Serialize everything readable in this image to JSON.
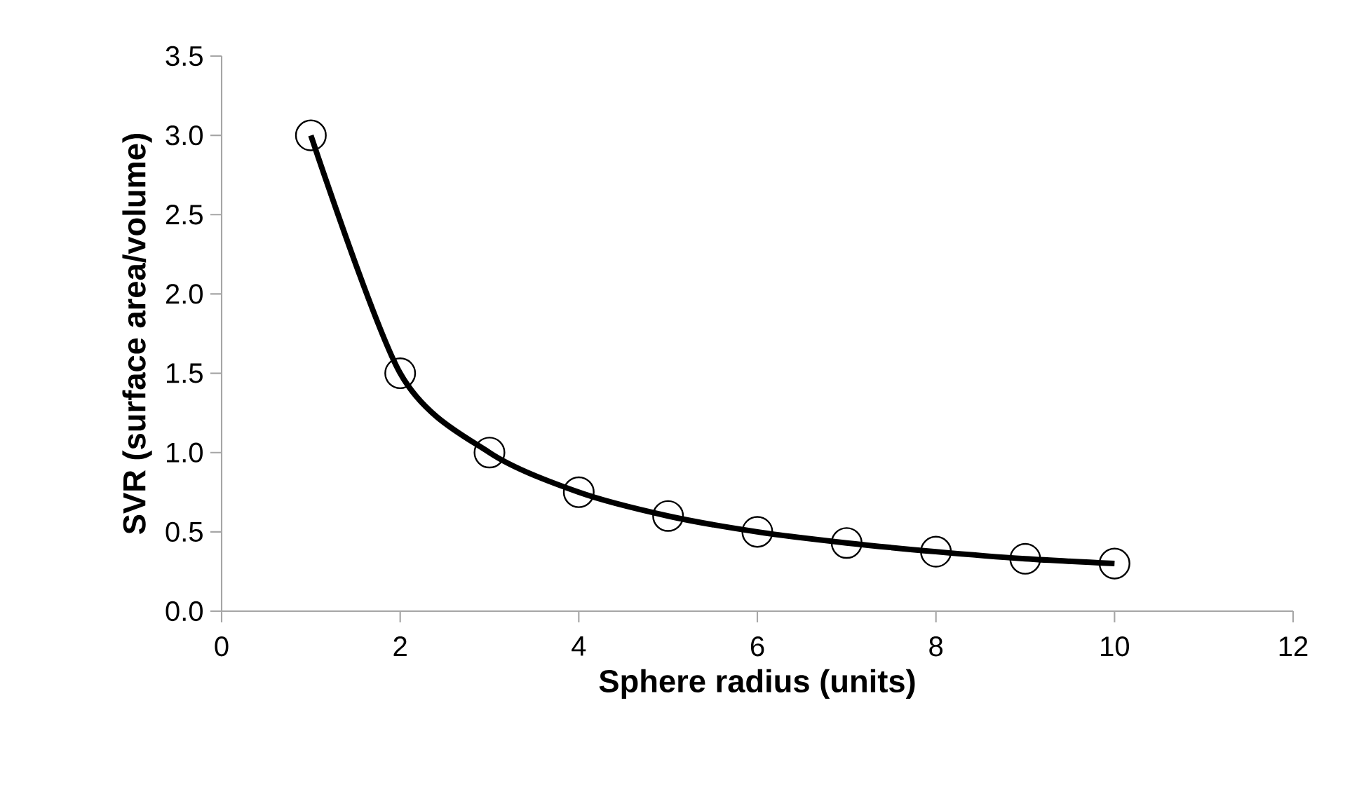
{
  "chart_data": {
    "type": "line",
    "xlabel": "Sphere radius (units)",
    "ylabel": "SVR (surface area/volume)",
    "x": [
      1,
      2,
      3,
      4,
      5,
      6,
      7,
      8,
      9,
      10
    ],
    "series": [
      {
        "color": "#000000",
        "values": [
          3.0,
          1.5,
          1.0,
          0.75,
          0.6,
          0.5,
          0.43,
          0.375,
          0.33,
          0.3
        ]
      }
    ],
    "xlim": [
      0,
      12
    ],
    "xticks": [
      0,
      2,
      4,
      6,
      8,
      10,
      12
    ],
    "ylim": [
      0,
      3.5
    ],
    "yticks": [
      {
        "value": 0,
        "label": "0.0"
      },
      {
        "value": 0.5,
        "label": "0.5"
      },
      {
        "value": 1,
        "label": "1.0"
      },
      {
        "value": 1.5,
        "label": "1.5"
      },
      {
        "value": 2,
        "label": "2.0"
      },
      {
        "value": 2.5,
        "label": "2.5"
      },
      {
        "value": 3,
        "label": "3.0"
      },
      {
        "value": 3.5,
        "label": "3.5"
      }
    ],
    "marker": "circle",
    "line_style": "solid"
  }
}
